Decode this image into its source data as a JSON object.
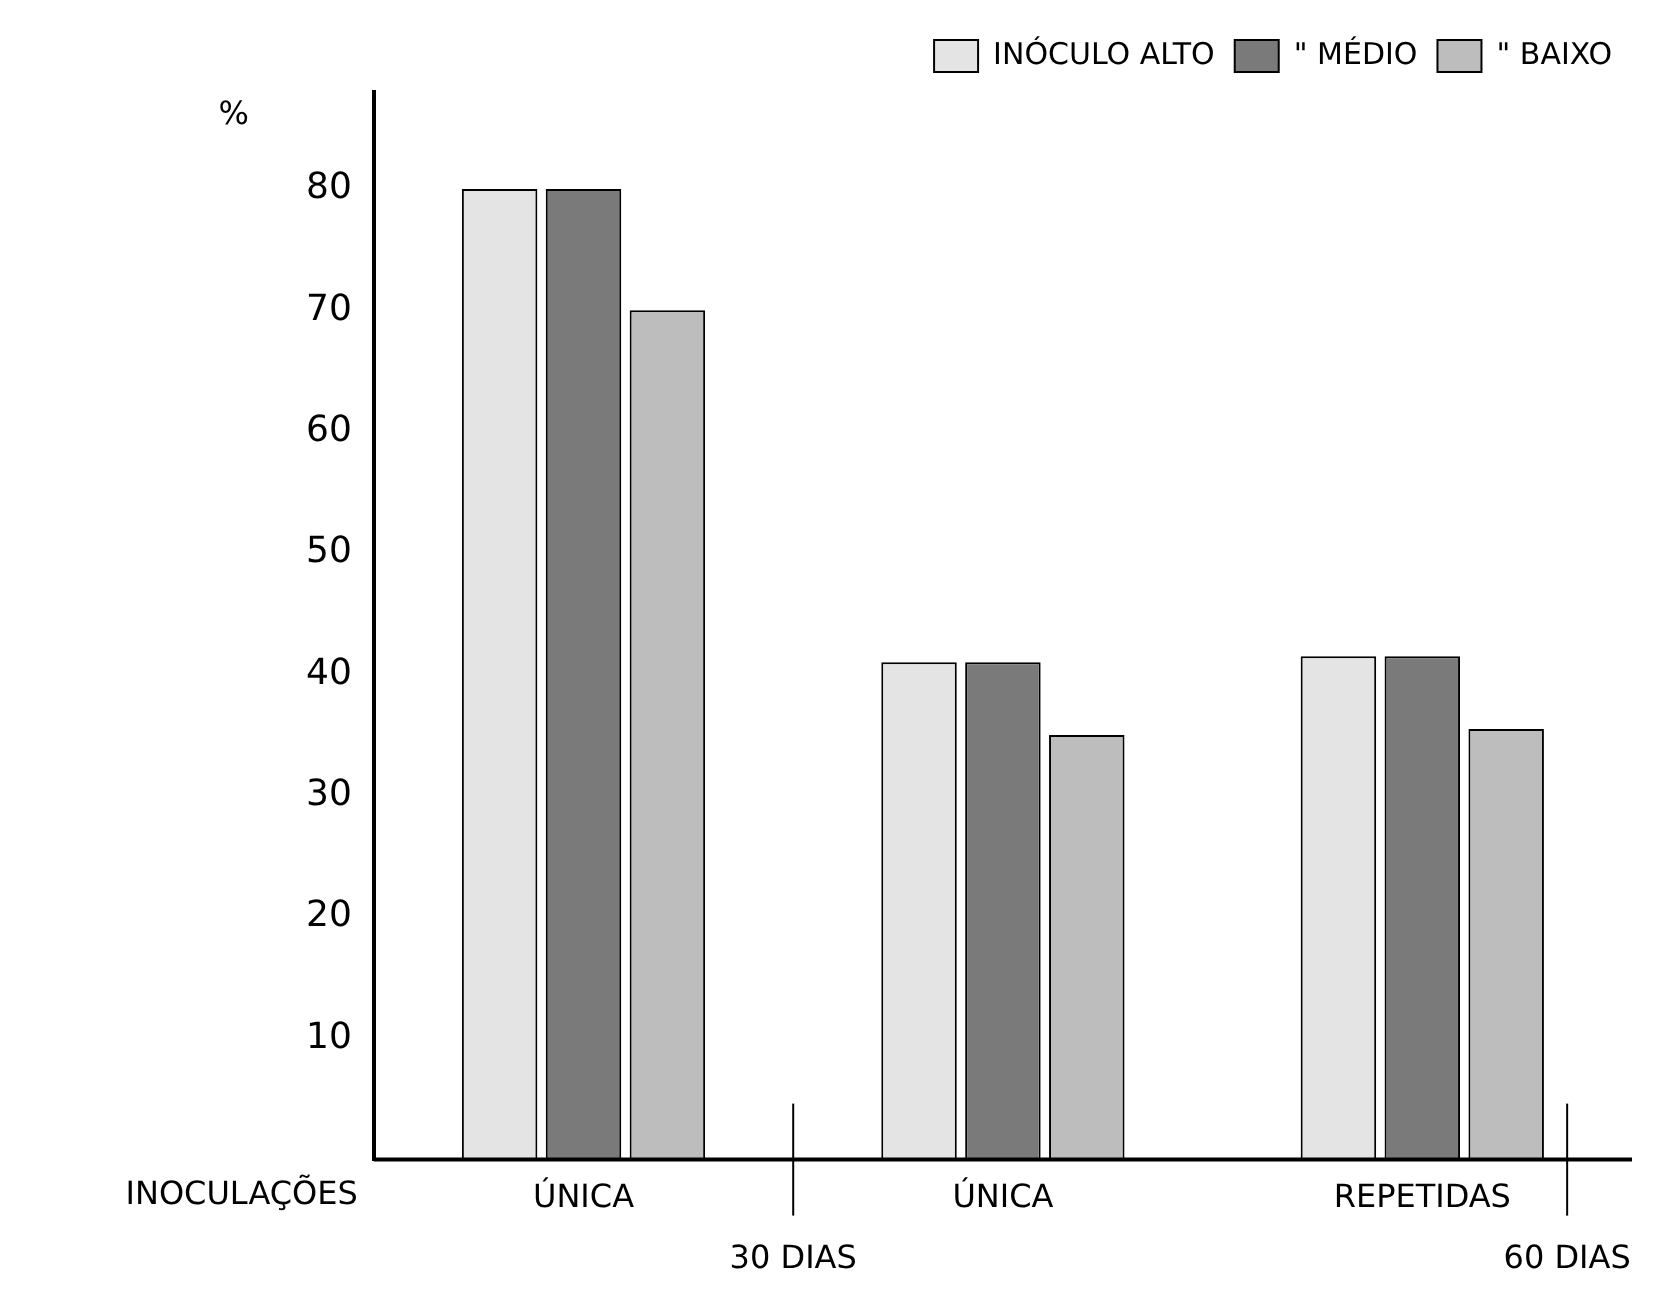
{
  "chart_data": {
    "type": "bar",
    "ylabel": "%",
    "xlabel": "INOCULAÇÕES",
    "categories": [
      "ÚNICA",
      "ÚNICA",
      "REPETIDAS"
    ],
    "series": [
      {
        "name": "INÓCULO ALTO",
        "color": "#e4e4e4",
        "values": [
          80,
          41,
          41.5
        ]
      },
      {
        "name": "\" MÉDIO",
        "color": "#7a7a7a",
        "values": [
          80,
          41,
          41.5
        ]
      },
      {
        "name": "\" BAIXO",
        "color": "#bdbdbd",
        "values": [
          70,
          35,
          35.5
        ]
      }
    ],
    "ylim": [
      0,
      88
    ],
    "yticks": [
      10,
      20,
      30,
      40,
      50,
      60,
      70,
      80
    ],
    "grid": false,
    "legend": "top right",
    "annotations": [
      "30 DIAS",
      "60 DIAS"
    ]
  }
}
